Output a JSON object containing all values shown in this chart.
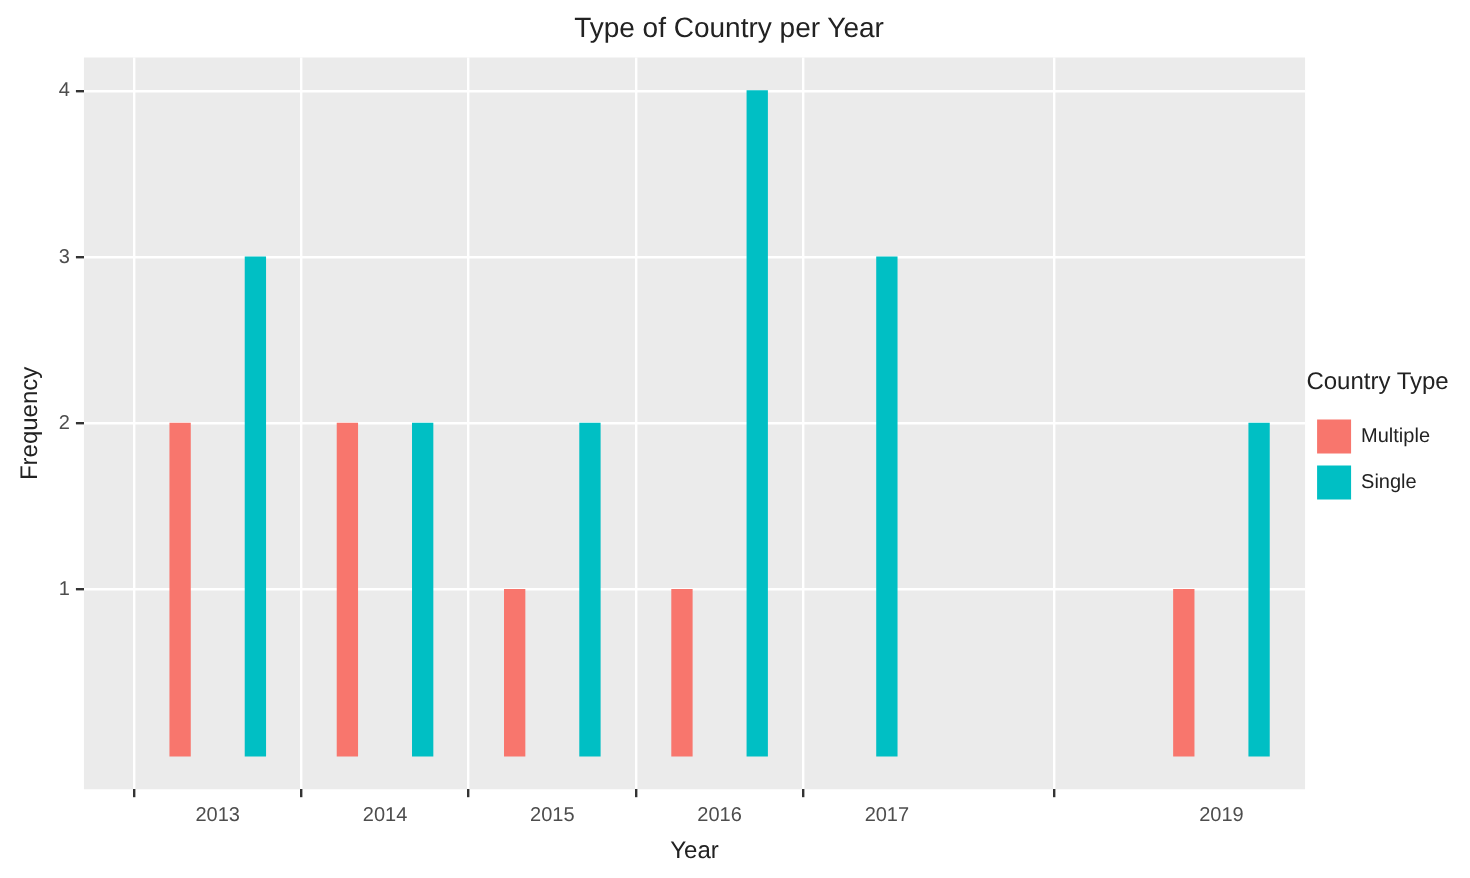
{
  "chart_data": {
    "type": "bar",
    "title": "Type of Country per Year",
    "xlabel": "Year",
    "ylabel": "Frequency",
    "legend_title": "Country Type",
    "x": [
      2013,
      2014,
      2015,
      2016,
      2017,
      2019
    ],
    "series": [
      {
        "name": "Multiple",
        "color": "#f8766d",
        "values": [
          2,
          2,
          1,
          1,
          null,
          1
        ]
      },
      {
        "name": "Single",
        "color": "#00bfc4",
        "values": [
          3,
          2,
          2,
          4,
          3,
          2
        ]
      }
    ],
    "xlim": [
      2012.2,
      2019.5
    ],
    "xticks": [
      2013,
      2014,
      2015,
      2016,
      2017,
      2019
    ],
    "ylim": [
      -0.2,
      4.2
    ],
    "yticks": [
      1,
      2,
      3,
      4
    ],
    "grid": true,
    "legend": "right"
  }
}
